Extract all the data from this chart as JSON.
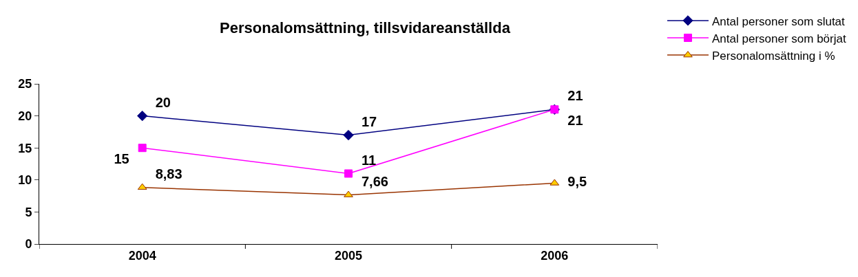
{
  "chart_data": {
    "type": "line",
    "title": "Personalomsättning, tillsvidareanställda",
    "categories": [
      "2004",
      "2005",
      "2006"
    ],
    "series": [
      {
        "name": "Antal personer som slutat",
        "color": "#000080",
        "marker": "diamond",
        "values": [
          20,
          17,
          21
        ],
        "value_labels": [
          "20",
          "17",
          "21"
        ]
      },
      {
        "name": "Antal personer som börjat",
        "color": "#ff00ff",
        "marker": "square",
        "values": [
          15,
          11,
          21
        ],
        "value_labels": [
          "15",
          "11",
          "21"
        ]
      },
      {
        "name": "Personalomsättning i %",
        "color": "#993300",
        "marker": "triangle",
        "values": [
          8.83,
          7.66,
          9.5
        ],
        "value_labels": [
          "8,83",
          "7,66",
          "9,5"
        ]
      }
    ],
    "ylim": [
      0,
      25
    ],
    "yticks": [
      0,
      5,
      10,
      15,
      20,
      25
    ],
    "legend": "top right",
    "line_style": "solid"
  }
}
